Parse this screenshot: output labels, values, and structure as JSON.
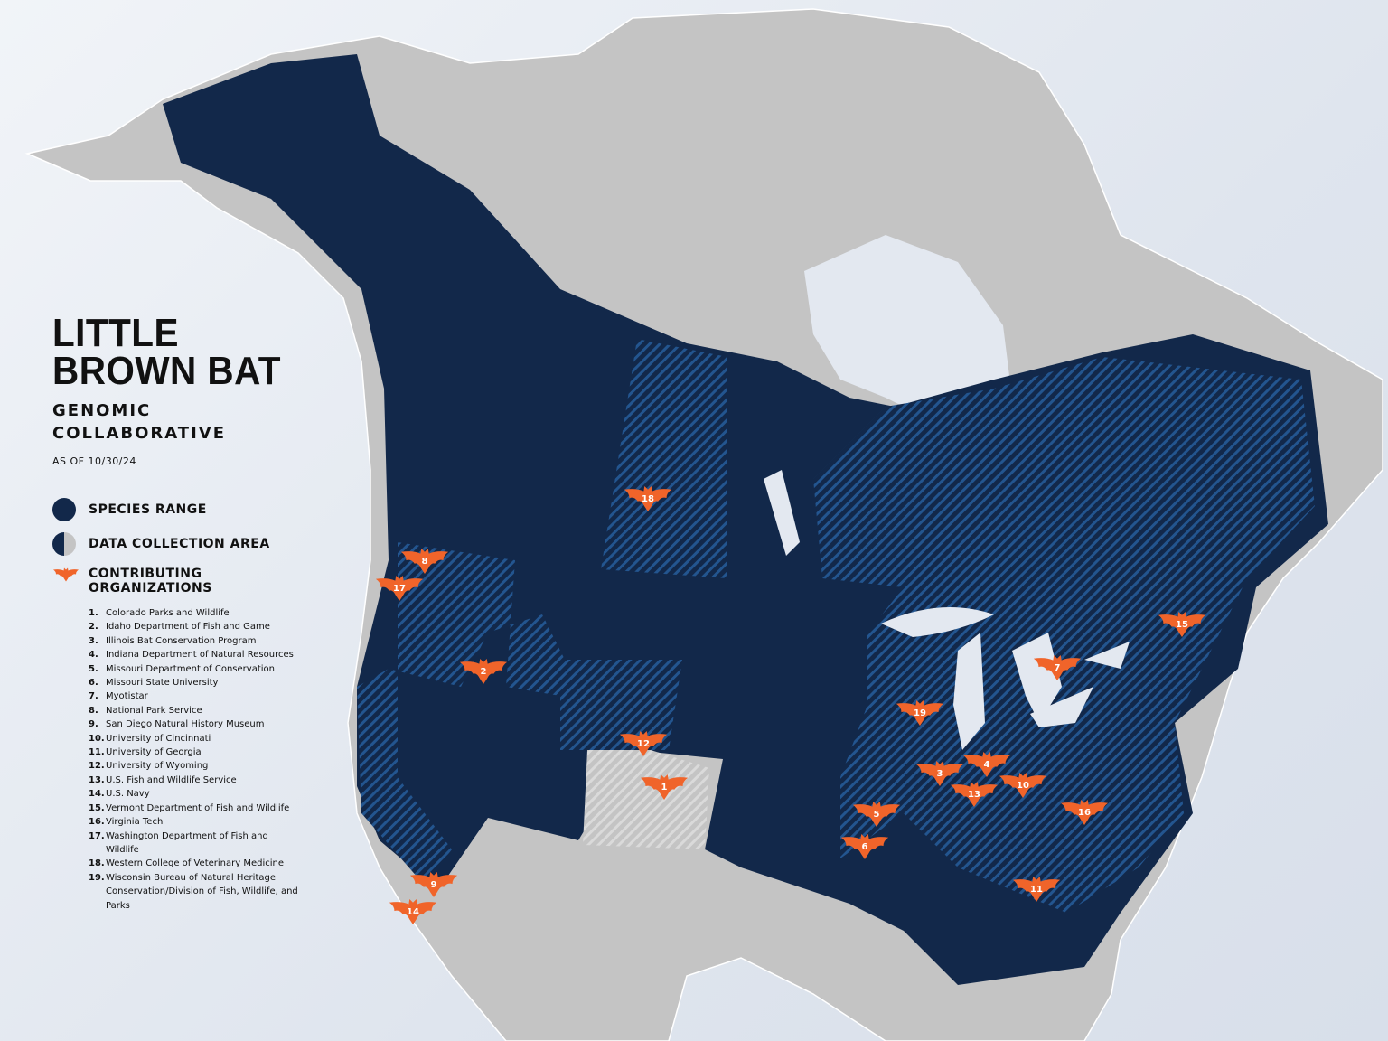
{
  "title": {
    "line1": "LITTLE",
    "line2": "BROWN BAT"
  },
  "subtitle": {
    "line1": "GENOMIC",
    "line2": "COLLABORATIVE"
  },
  "as_of": "AS OF 10/30/24",
  "legend": {
    "species_range": "SPECIES RANGE",
    "data_collection_area": "DATA COLLECTION AREA",
    "contributing_organizations": {
      "line1": "CONTRIBUTING",
      "line2": "ORGANIZATIONS"
    }
  },
  "colors": {
    "range": "#12284a",
    "hatch": "#1d4f8a",
    "bat": "#f0642a",
    "land": "#c4c4c4",
    "water": "#e3e8f0"
  },
  "organizations": [
    {
      "num": "1.",
      "name": "Colorado Parks and Wildlife"
    },
    {
      "num": "2.",
      "name": "Idaho Department of Fish and Game"
    },
    {
      "num": "3.",
      "name": "Illinois Bat Conservation Program"
    },
    {
      "num": "4.",
      "name": "Indiana Department of Natural Resources"
    },
    {
      "num": "5.",
      "name": "Missouri Department of Conservation"
    },
    {
      "num": "6.",
      "name": "Missouri State University"
    },
    {
      "num": "7.",
      "name": "Myotistar"
    },
    {
      "num": "8.",
      "name": "National Park Service"
    },
    {
      "num": "9.",
      "name": "San Diego Natural History Museum"
    },
    {
      "num": "10.",
      "name": "University of Cincinnati"
    },
    {
      "num": "11.",
      "name": "University of Georgia"
    },
    {
      "num": "12.",
      "name": "University of Wyoming"
    },
    {
      "num": "13.",
      "name": "U.S. Fish and Wildlife Service"
    },
    {
      "num": "14.",
      "name": "U.S. Navy"
    },
    {
      "num": "15.",
      "name": "Vermont Department of Fish and Wildlife"
    },
    {
      "num": "16.",
      "name": "Virginia Tech"
    },
    {
      "num": "17.",
      "name": "Washington Department of Fish and Wildlife"
    },
    {
      "num": "18.",
      "name": "Western College of Veterinary Medicine"
    },
    {
      "num": "19.",
      "name": "Wisconsin Bureau of Natural Heritage Conservation/Division of Fish, Wildlife, and Parks"
    }
  ],
  "markers": [
    "1",
    "2",
    "3",
    "4",
    "5",
    "6",
    "7",
    "8",
    "9",
    "10",
    "11",
    "12",
    "13",
    "14",
    "15",
    "16",
    "17",
    "18",
    "19"
  ]
}
